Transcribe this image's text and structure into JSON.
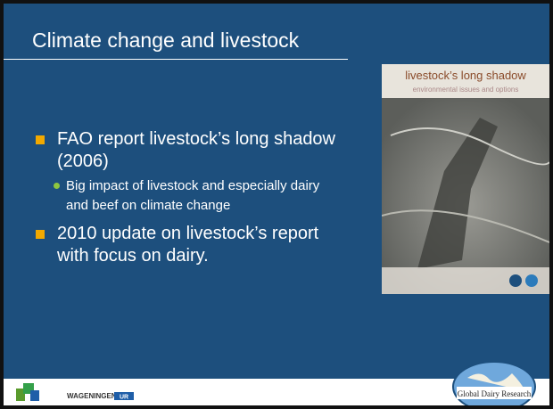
{
  "header": {
    "title": "Climate change and livestock"
  },
  "bullets": [
    {
      "text": "FAO report livestock’s long shadow (2006)",
      "sub": [
        "Big impact of livestock and especially dairy and beef on climate change"
      ]
    },
    {
      "text": "2010 update on livestock’s report with focus on dairy.",
      "sub": []
    }
  ],
  "cover": {
    "title": "livestock’s long shadow",
    "subtitle": "environmental issues and options"
  },
  "footer": {
    "left_logo": "WAGENINGEN",
    "left_logo_suffix": "UR",
    "right_logo": "Global Dairy Research"
  }
}
